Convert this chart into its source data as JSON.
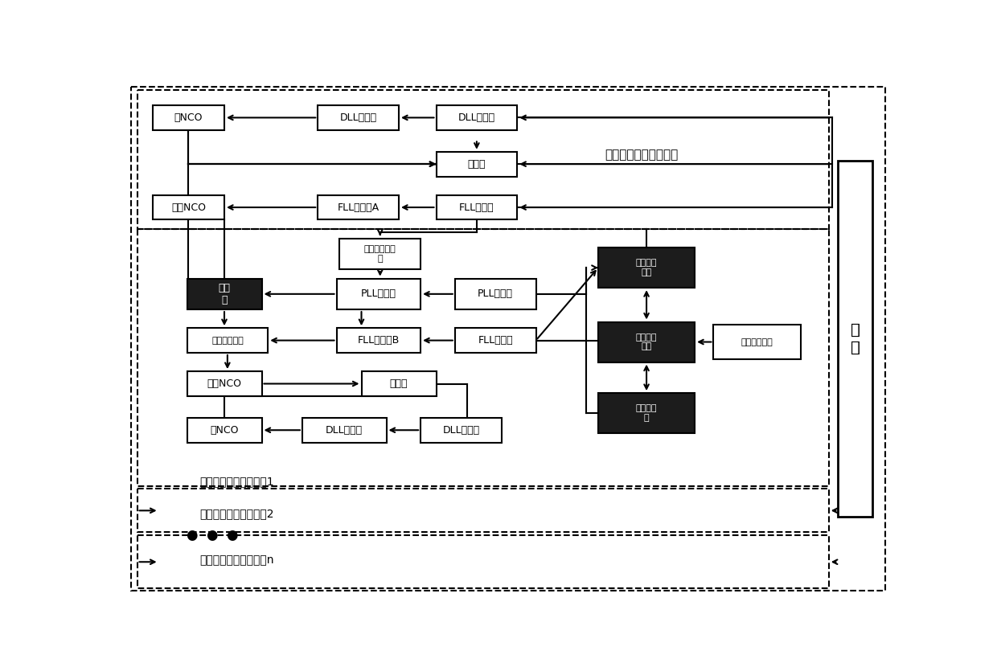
{
  "bg_color": "#ffffff",
  "fig_w": 12.4,
  "fig_h": 8.35,
  "dpi": 100,
  "top_label": "惯性信息判别跟踪环路",
  "loop1_label": "惯性信息辅助跟踪环路1",
  "loop2_label": "惯性信息辅助跟踪环路2",
  "loopn_label": "惯性信息辅助跟踪环路n",
  "signal_text": "信\n号",
  "dots_text": "●  ●  ●"
}
